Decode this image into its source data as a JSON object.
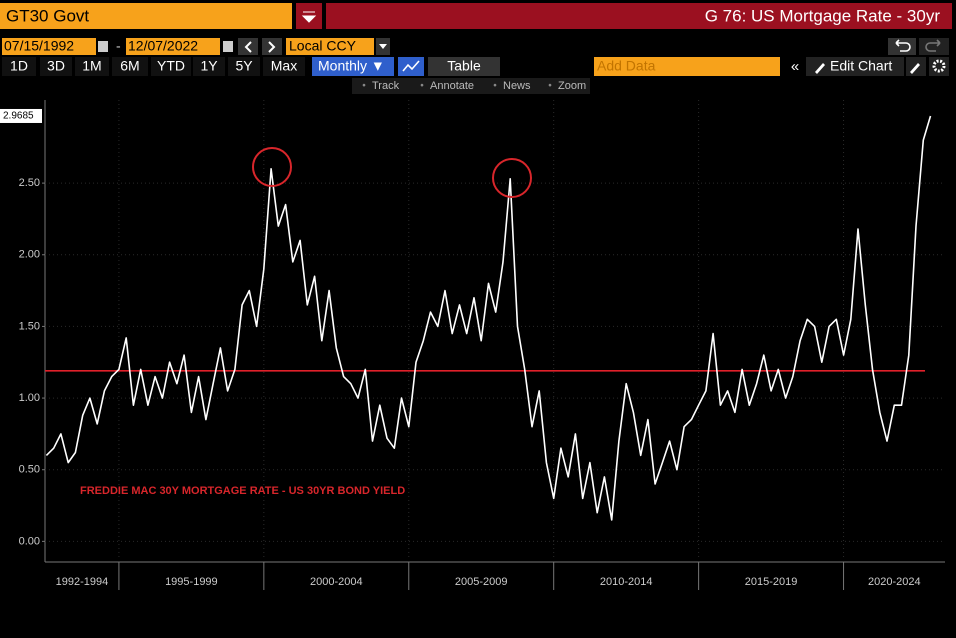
{
  "toolbar": {
    "ticker": "GT30 Govt",
    "chart_name": "G 76: US Mortgage Rate - 30yr",
    "start_date": "07/15/1992",
    "date_separator": "-",
    "end_date": "12/07/2022",
    "currency": "Local CCY",
    "ranges": [
      "1D",
      "3D",
      "1M",
      "6M",
      "YTD",
      "1Y",
      "5Y",
      "Max"
    ],
    "frequency": "Monthly ▼",
    "table": "Table",
    "add_data": "Add Data",
    "edit_chart": "Edit Chart",
    "tools": [
      "Track",
      "Annotate",
      "News",
      "Zoom"
    ]
  },
  "chart_data": {
    "type": "line",
    "annotation": "FREDDIE MAC 30Y MORTGAGE RATE - US 30YR BOND YIELD",
    "x": [
      1992.5,
      1992.75,
      1993,
      1993.25,
      1993.5,
      1993.75,
      1994,
      1994.25,
      1994.5,
      1994.75,
      1995,
      1995.25,
      1995.5,
      1995.75,
      1996,
      1996.25,
      1996.5,
      1996.75,
      1997,
      1997.25,
      1997.5,
      1997.75,
      1998,
      1998.25,
      1998.5,
      1998.75,
      1999,
      1999.25,
      1999.5,
      1999.75,
      2000,
      2000.25,
      2000.5,
      2000.75,
      2001,
      2001.25,
      2001.5,
      2001.75,
      2002,
      2002.25,
      2002.5,
      2002.75,
      2003,
      2003.25,
      2003.5,
      2003.75,
      2004,
      2004.25,
      2004.5,
      2004.75,
      2005,
      2005.25,
      2005.5,
      2005.75,
      2006,
      2006.25,
      2006.5,
      2006.75,
      2007,
      2007.25,
      2007.5,
      2007.75,
      2008,
      2008.25,
      2008.5,
      2008.75,
      2009,
      2009.25,
      2009.5,
      2009.75,
      2010,
      2010.25,
      2010.5,
      2010.75,
      2011,
      2011.25,
      2011.5,
      2011.75,
      2012,
      2012.25,
      2012.5,
      2012.75,
      2013,
      2013.25,
      2013.5,
      2013.75,
      2014,
      2014.25,
      2014.5,
      2014.75,
      2015,
      2015.25,
      2015.5,
      2015.75,
      2016,
      2016.25,
      2016.5,
      2016.75,
      2017,
      2017.25,
      2017.5,
      2017.75,
      2018,
      2018.25,
      2018.5,
      2018.75,
      2019,
      2019.25,
      2019.5,
      2019.75,
      2020,
      2020.25,
      2020.5,
      2020.75,
      2021,
      2021.25,
      2021.5,
      2021.75,
      2022,
      2022.25,
      2022.5,
      2022.75,
      2023
    ],
    "series": [
      {
        "color": "#ffffff",
        "values": [
          0.6,
          0.65,
          0.75,
          0.55,
          0.62,
          0.88,
          1.0,
          0.82,
          1.05,
          1.15,
          1.2,
          1.42,
          0.95,
          1.2,
          0.95,
          1.15,
          1.0,
          1.25,
          1.1,
          1.3,
          0.9,
          1.15,
          0.85,
          1.1,
          1.35,
          1.05,
          1.2,
          1.65,
          1.75,
          1.5,
          1.9,
          2.6,
          2.2,
          2.35,
          1.95,
          2.1,
          1.65,
          1.85,
          1.4,
          1.75,
          1.35,
          1.15,
          1.1,
          1.0,
          1.2,
          0.7,
          0.95,
          0.72,
          0.65,
          1.0,
          0.8,
          1.25,
          1.4,
          1.6,
          1.5,
          1.75,
          1.45,
          1.65,
          1.45,
          1.7,
          1.4,
          1.8,
          1.6,
          1.95,
          2.53,
          1.5,
          1.2,
          0.8,
          1.05,
          0.55,
          0.3,
          0.65,
          0.45,
          0.75,
          0.3,
          0.55,
          0.2,
          0.45,
          0.15,
          0.7,
          1.1,
          0.9,
          0.6,
          0.85,
          0.4,
          0.55,
          0.7,
          0.5,
          0.8,
          0.85,
          0.95,
          1.05,
          1.45,
          0.95,
          1.05,
          0.9,
          1.2,
          0.95,
          1.1,
          1.3,
          1.05,
          1.2,
          1.0,
          1.15,
          1.4,
          1.55,
          1.5,
          1.25,
          1.5,
          1.55,
          1.3,
          1.55,
          2.18,
          1.65,
          1.2,
          0.9,
          0.7,
          0.95,
          0.95,
          1.3,
          2.2,
          2.8,
          2.9685
        ]
      }
    ],
    "reference_line": {
      "value": 1.19,
      "color": "#e0202a"
    },
    "xlim": [
      1992.45,
      2023.5
    ],
    "xticks": [
      {
        "value": 1992,
        "label": "1992-1994"
      },
      {
        "value": 1995,
        "label": "1995-1999"
      },
      {
        "value": 2000,
        "label": "2000-2004"
      },
      {
        "value": 2005,
        "label": "2005-2009"
      },
      {
        "value": 2010,
        "label": "2010-2014"
      },
      {
        "value": 2015,
        "label": "2015-2019"
      },
      {
        "value": 2020,
        "label": "2020-2024"
      }
    ],
    "ylim": [
      -0.13,
      3.08
    ],
    "yticks": [
      {
        "value": 0,
        "label": "0.00"
      },
      {
        "value": 0.5,
        "label": "0.50"
      },
      {
        "value": 1,
        "label": "1.00"
      },
      {
        "value": 1.5,
        "label": "1.50"
      },
      {
        "value": 2,
        "label": "2.00"
      },
      {
        "value": 2.5,
        "label": "2.50"
      }
    ],
    "grid": true
  }
}
